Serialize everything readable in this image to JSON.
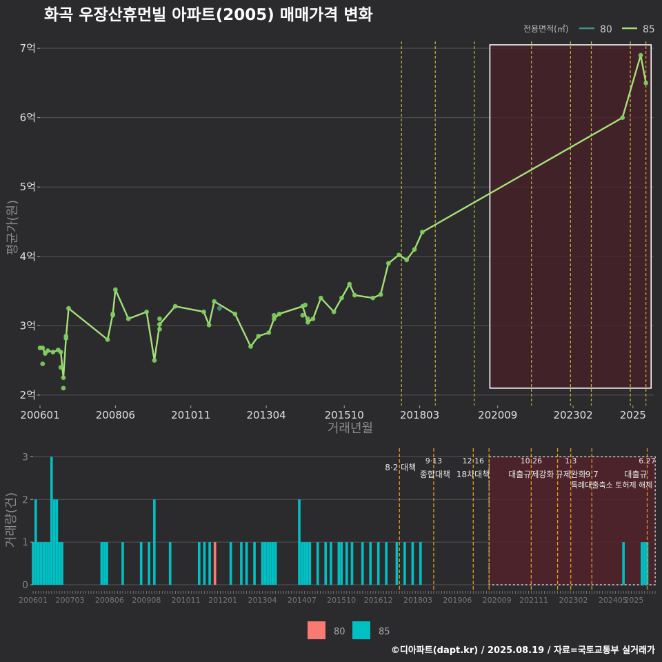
{
  "title": "화곡 우장산휴먼빌 아파트(2005) 매매가격 변화",
  "footer": "©디아파트(dapt.kr) / 2025.08.19 / 자료=국토교통부 실거래가",
  "colors": {
    "s80": "#4a8f8f",
    "s85": "#a6e07a",
    "bar80": "#f87a70",
    "bar85": "#00c0c4",
    "highlight_fill": "#4a2028",
    "policy": "#e0d040",
    "policy_bottom": "#e89a20"
  },
  "chart_data": [
    {
      "type": "line",
      "legend": {
        "title": "전용면적(㎡)",
        "entries": [
          "80",
          "85"
        ],
        "placement": "top-right"
      },
      "xlabel": "거래년월",
      "ylabel": "평균가(원)",
      "x_ticks": [
        "200601",
        "200806",
        "201011",
        "201304",
        "201510",
        "201803",
        "202009",
        "202302",
        "2025"
      ],
      "y_ticks": [
        {
          "v": 2,
          "label": "2억"
        },
        {
          "v": 3,
          "label": "3억"
        },
        {
          "v": 4,
          "label": "4억"
        },
        {
          "v": 5,
          "label": "5억"
        },
        {
          "v": 6,
          "label": "6억"
        },
        {
          "v": 7,
          "label": "7억"
        }
      ],
      "ylim": [
        1.85,
        7.1
      ],
      "xlim": [
        "2006-01",
        "2025-09"
      ],
      "highlight": {
        "from": "2020-06",
        "to": "2025-08",
        "ymin": 2.1,
        "ymax": 7.05
      },
      "policy_lines": [
        "2017-08",
        "2018-09",
        "2019-12",
        "2021-10",
        "2023-01",
        "2023-09",
        "2024-12",
        "2025-06"
      ],
      "series": [
        {
          "name": "85",
          "points": [
            [
              "2006-01",
              2.68
            ],
            [
              "2006-02",
              2.68
            ],
            [
              "2006-03",
              2.6
            ],
            [
              "2006-04",
              2.64
            ],
            [
              "2006-06",
              2.62
            ],
            [
              "2006-08",
              2.65
            ],
            [
              "2006-09",
              2.62
            ],
            [
              "2006-10",
              2.25
            ],
            [
              "2006-11",
              2.82
            ],
            [
              "2006-12",
              3.25
            ],
            [
              "2008-03",
              2.8
            ],
            [
              "2008-05",
              3.17
            ],
            [
              "2008-06",
              3.52
            ],
            [
              "2008-11",
              3.1
            ],
            [
              "2009-06",
              3.2
            ],
            [
              "2009-09",
              2.5
            ],
            [
              "2009-11",
              3.02
            ],
            [
              "2010-05",
              3.28
            ],
            [
              "2011-04",
              3.2
            ],
            [
              "2011-06",
              3.01
            ],
            [
              "2011-08",
              3.35
            ],
            [
              "2012-04",
              3.17
            ],
            [
              "2012-10",
              2.7
            ],
            [
              "2013-01",
              2.85
            ],
            [
              "2013-05",
              2.9
            ],
            [
              "2013-07",
              3.1
            ],
            [
              "2013-09",
              3.17
            ],
            [
              "2014-06",
              3.28
            ],
            [
              "2014-08",
              3.05
            ],
            [
              "2014-10",
              3.1
            ],
            [
              "2015-01",
              3.4
            ],
            [
              "2015-06",
              3.2
            ],
            [
              "2015-09",
              3.4
            ],
            [
              "2015-12",
              3.6
            ],
            [
              "2016-02",
              3.44
            ],
            [
              "2016-09",
              3.4
            ],
            [
              "2016-12",
              3.45
            ],
            [
              "2017-03",
              3.9
            ],
            [
              "2017-07",
              4.02
            ],
            [
              "2017-10",
              3.95
            ],
            [
              "2018-01",
              4.1
            ],
            [
              "2018-04",
              4.35
            ],
            [
              "2024-09",
              6.0
            ],
            [
              "2025-04",
              6.9
            ],
            [
              "2025-06",
              6.5
            ]
          ],
          "extra_points": [
            [
              "2006-02",
              2.45
            ],
            [
              "2006-10",
              2.1
            ],
            [
              "2006-09",
              2.4
            ],
            [
              "2006-11",
              2.85
            ],
            [
              "2008-05",
              3.15
            ],
            [
              "2009-11",
              2.95
            ],
            [
              "2014-07",
              3.3
            ],
            [
              "2014-06",
              3.15
            ],
            [
              "2014-08",
              3.1
            ],
            [
              "2013-07",
              3.15
            ],
            [
              "2009-11",
              3.1
            ]
          ]
        },
        {
          "name": "80",
          "points": [
            [
              "2011-10",
              3.25
            ]
          ]
        }
      ]
    },
    {
      "type": "bar",
      "legend": {
        "entries": [
          "80",
          "85"
        ],
        "placement": "bottom"
      },
      "ylabel": "거래량(건)",
      "y_ticks": [
        0,
        1,
        2,
        3
      ],
      "ylim": [
        0,
        3.2
      ],
      "x_ticks": [
        "200601",
        "200703",
        "200806",
        "200908",
        "201011",
        "201201",
        "201304",
        "201407",
        "201510",
        "201612",
        "201803",
        "201906",
        "202009",
        "202111",
        "202302",
        "202405",
        "2025"
      ],
      "highlight": {
        "from": "2020-06",
        "to": "2025-08"
      },
      "policies": [
        {
          "date": "2017-08",
          "label1": "",
          "label2": "8·2 대책"
        },
        {
          "date": "2018-09",
          "label1": "9·13",
          "label2": "종합대책"
        },
        {
          "date": "2019-12",
          "label1": "12·16",
          "label2": "18차대책"
        },
        {
          "date": "2020-06",
          "label1": "",
          "label2": ""
        },
        {
          "date": "2021-10",
          "label1": "10.26",
          "label2": "대출규제강화"
        },
        {
          "date": "2022-08",
          "label1": "",
          "label2": ""
        },
        {
          "date": "2023-01",
          "label1": "1.3",
          "label2": "규제완화"
        },
        {
          "date": "2023-09",
          "label1": "",
          "label2": "9.7"
        },
        {
          "date": "2025-06",
          "label1": "6.27",
          "label2": "대출규"
        }
      ],
      "annotation": "특례대출축소 토허제 해제",
      "series85": [
        [
          "2006-01",
          1
        ],
        [
          "2006-02",
          2
        ],
        [
          "2006-03",
          1
        ],
        [
          "2006-04",
          1
        ],
        [
          "2006-05",
          1
        ],
        [
          "2006-06",
          1
        ],
        [
          "2006-07",
          1
        ],
        [
          "2006-08",
          3
        ],
        [
          "2006-09",
          2
        ],
        [
          "2006-10",
          2
        ],
        [
          "2006-11",
          1
        ],
        [
          "2006-12",
          1
        ],
        [
          "2008-03",
          1
        ],
        [
          "2008-04",
          1
        ],
        [
          "2008-05",
          1
        ],
        [
          "2008-11",
          1
        ],
        [
          "2009-06",
          1
        ],
        [
          "2009-09",
          1
        ],
        [
          "2009-11",
          2
        ],
        [
          "2010-05",
          1
        ],
        [
          "2011-04",
          1
        ],
        [
          "2011-06",
          1
        ],
        [
          "2011-08",
          1
        ],
        [
          "2012-04",
          1
        ],
        [
          "2012-08",
          1
        ],
        [
          "2012-10",
          1
        ],
        [
          "2013-01",
          1
        ],
        [
          "2013-04",
          1
        ],
        [
          "2013-05",
          1
        ],
        [
          "2013-06",
          1
        ],
        [
          "2013-07",
          1
        ],
        [
          "2013-08",
          1
        ],
        [
          "2013-09",
          1
        ],
        [
          "2014-06",
          2
        ],
        [
          "2014-07",
          1
        ],
        [
          "2014-08",
          1
        ],
        [
          "2014-09",
          1
        ],
        [
          "2014-10",
          1
        ],
        [
          "2015-01",
          1
        ],
        [
          "2015-04",
          1
        ],
        [
          "2015-06",
          1
        ],
        [
          "2015-09",
          1
        ],
        [
          "2015-10",
          1
        ],
        [
          "2015-12",
          1
        ],
        [
          "2016-02",
          1
        ],
        [
          "2016-06",
          1
        ],
        [
          "2016-09",
          1
        ],
        [
          "2016-12",
          1
        ],
        [
          "2017-03",
          1
        ],
        [
          "2017-07",
          1
        ],
        [
          "2017-10",
          1
        ],
        [
          "2018-01",
          1
        ],
        [
          "2018-04",
          1
        ],
        [
          "2024-09",
          1
        ],
        [
          "2025-04",
          1
        ],
        [
          "2025-05",
          1
        ],
        [
          "2025-06",
          1
        ]
      ],
      "series80": [
        [
          "2011-10",
          1
        ]
      ]
    }
  ]
}
